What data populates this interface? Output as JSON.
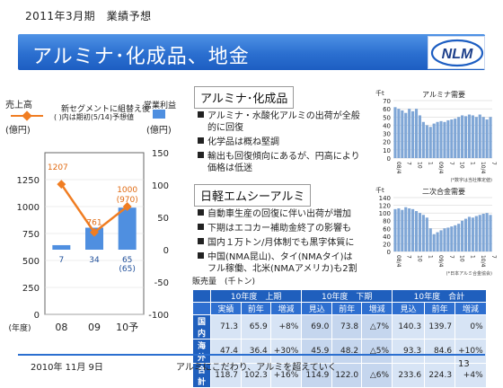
{
  "header": {
    "period_label": "2011年3月期　業績予想",
    "title": "アルミナ･化成品、地金"
  },
  "left_chart": {
    "legend_sales": "売上高",
    "legend_sales_unit": "(億円)",
    "legend_new_segment": "新セグメントに組替え後",
    "legend_note": "( )内は期初(5/14)予想値",
    "legend_profit": "営業利益",
    "legend_profit_unit": "(億円)",
    "year_unit": "(年度)",
    "colors": {
      "sales_line": "#f07d22",
      "profit_bar": "#4f8fe0"
    }
  },
  "chart_data": [
    {
      "type": "bar+line",
      "categories": [
        "08",
        "09",
        "10予"
      ],
      "series": [
        {
          "name": "売上高",
          "type": "line",
          "axis": "left",
          "values": [
            1207,
            761,
            1000
          ],
          "labels": [
            "1207",
            "761",
            "1000\n(970)"
          ]
        },
        {
          "name": "営業利益",
          "type": "bar",
          "axis": "right",
          "values": [
            7,
            34,
            65
          ],
          "labels": [
            "7",
            "34",
            "65\n(65)"
          ]
        }
      ],
      "y_left": {
        "ylim": [
          0,
          1500
        ],
        "ticks": [
          "0",
          "250",
          "500",
          "750",
          "1000",
          "1250"
        ]
      },
      "y_right": {
        "ylim": [
          -100,
          150
        ],
        "ticks": [
          "-100",
          "-50",
          "0",
          "50",
          "100",
          "150"
        ]
      }
    },
    {
      "type": "bar",
      "title": "アルミナ需要",
      "ylabel": "千t",
      "ylim": [
        0,
        70
      ],
      "ticks": [
        "0",
        "10",
        "20",
        "30",
        "40",
        "50",
        "60",
        "70"
      ],
      "x_ticks": [
        "08/4",
        "7",
        "10",
        "1",
        "09/4",
        "7",
        "10",
        "1",
        "10/4",
        "7"
      ],
      "values": [
        62,
        60,
        58,
        55,
        60,
        57,
        60,
        52,
        44,
        40,
        38,
        42,
        44,
        45,
        44,
        46,
        47,
        48,
        50,
        52,
        51,
        53,
        52,
        50,
        53,
        50,
        47,
        50
      ],
      "source": "(*数字は当社推定値)"
    },
    {
      "type": "bar",
      "title": "二次合金需要",
      "ylabel": "千t",
      "ylim": [
        0,
        140
      ],
      "ticks": [
        "0",
        "20",
        "40",
        "60",
        "80",
        "100",
        "120",
        "140"
      ],
      "x_ticks": [
        "08/4",
        "7",
        "10",
        "1",
        "09/4",
        "7",
        "10",
        "1",
        "10/4",
        "7"
      ],
      "values": [
        110,
        112,
        108,
        115,
        112,
        110,
        105,
        100,
        95,
        88,
        60,
        45,
        50,
        55,
        60,
        62,
        65,
        68,
        72,
        80,
        85,
        90,
        88,
        92,
        95,
        98,
        100,
        95
      ],
      "source": "(*日本アルミ合金協会)"
    }
  ],
  "alumina_section": {
    "title": "アルミナ･化成品",
    "bullets": [
      [
        "アルミナ・水酸化アルミの出荷が全般",
        "的に回復"
      ],
      [
        "化学品は概ね堅調"
      ],
      [
        "輸出も回復傾向にあるが、円高により",
        "価格は低迷"
      ]
    ]
  },
  "nikkei_section": {
    "title": "日軽エムシーアルミ",
    "bullets": [
      [
        "自動車生産の回復に伴い出荷が増加"
      ],
      [
        "下期はエコカー補助金終了の影響も"
      ],
      [
        "国内１万トン/月体制でも黒字体質に"
      ],
      [
        "中国(NMA昆山)、タイ(NMAタイ)は",
        "フル稼働、北米(NMAアメリカ)も2割"
      ]
    ]
  },
  "sales_table": {
    "caption": "販売量　(千トン)",
    "group_headers": [
      "10年度　上期",
      "10年度　下期",
      "10年度　合計"
    ],
    "sub_headers": [
      "実績",
      "前年",
      "増減",
      "見込",
      "前年",
      "増減",
      "見込",
      "前年",
      "増減"
    ],
    "rows": [
      {
        "label": "国内",
        "cells": [
          "71.3",
          "65.9",
          "+8%",
          "69.0",
          "73.8",
          "△7%",
          "140.3",
          "139.7",
          "0%"
        ]
      },
      {
        "label": "海外",
        "cells": [
          "47.4",
          "36.4",
          "+30%",
          "45.9",
          "48.2",
          "△5%",
          "93.3",
          "84.6",
          "+10%"
        ]
      },
      {
        "label": "合計",
        "cells": [
          "118.7",
          "102.3",
          "+16%",
          "114.9",
          "122.0",
          "△6%",
          "233.6",
          "224.3",
          "+4%"
        ]
      }
    ]
  },
  "footer": {
    "date": "2010年 11月 9日",
    "tagline": "アルミにこだわり、アルミを超えていく",
    "page_number": "13"
  }
}
